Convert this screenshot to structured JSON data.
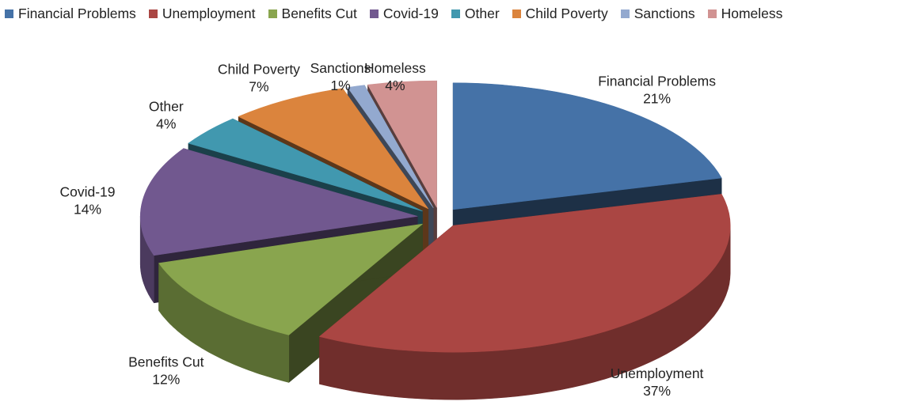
{
  "chart_data": {
    "type": "pie",
    "style": "3d-exploded",
    "legend_position": "top",
    "slices": [
      {
        "name": "Financial Problems",
        "value": 21,
        "label": "21%",
        "color": "#4572A7"
      },
      {
        "name": "Unemployment",
        "value": 37,
        "label": "37%",
        "color": "#AA4643"
      },
      {
        "name": "Benefits Cut",
        "value": 12,
        "label": "12%",
        "color": "#89A54E"
      },
      {
        "name": "Covid-19",
        "value": 14,
        "label": "14%",
        "color": "#71588F"
      },
      {
        "name": "Other",
        "value": 4,
        "label": "4%",
        "color": "#4198AF"
      },
      {
        "name": "Child Poverty",
        "value": 7,
        "label": "7%",
        "color": "#DB843D"
      },
      {
        "name": "Sanctions",
        "value": 1,
        "label": "1%",
        "color": "#93A9CF"
      },
      {
        "name": "Homeless",
        "value": 4,
        "label": "4%",
        "color": "#D19392"
      }
    ]
  }
}
